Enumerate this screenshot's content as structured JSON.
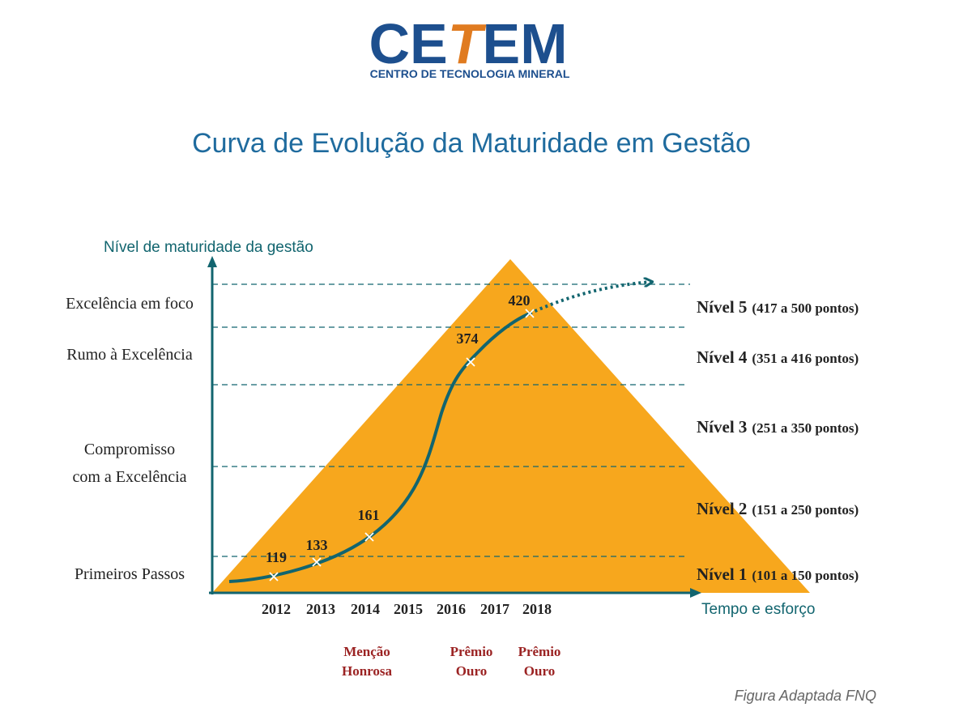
{
  "header": {
    "logo": [
      "CE",
      "T",
      "EM"
    ],
    "logo_subtitle": "CENTRO DE TECNOLOGIA MINERAL",
    "title": "Curva de Evolução da Maturidade em Gestão"
  },
  "axes": {
    "y_label": "Nível de maturidade da gestão",
    "x_label": "Tempo e esforço"
  },
  "stages": [
    [
      "Excelência em foco"
    ],
    [
      "Rumo à Excelência"
    ],
    [
      "Compromisso",
      "com a Excelência"
    ],
    [
      "Primeiros Passos"
    ]
  ],
  "levels": [
    {
      "name": "Nível 5",
      "range": "(417 a 500 pontos)"
    },
    {
      "name": "Nível 4",
      "range": "(351 a 416 pontos)"
    },
    {
      "name": "Nível 3",
      "range": "(251 a 350 pontos)"
    },
    {
      "name": "Nível 2",
      "range": "(151 a 250 pontos)"
    },
    {
      "name": "Nível 1",
      "range": "(101 a 150 pontos)"
    }
  ],
  "years": [
    "2012",
    "2013",
    "2014",
    "2015",
    "2016",
    "2017",
    "2018"
  ],
  "scores": [
    "119",
    "133",
    "161",
    "374",
    "420"
  ],
  "awards": [
    [
      "Menção",
      "Honrosa"
    ],
    [
      "Prêmio",
      "Ouro"
    ],
    [
      "Prêmio",
      "Ouro"
    ]
  ],
  "caption": "Figura Adaptada FNQ"
}
